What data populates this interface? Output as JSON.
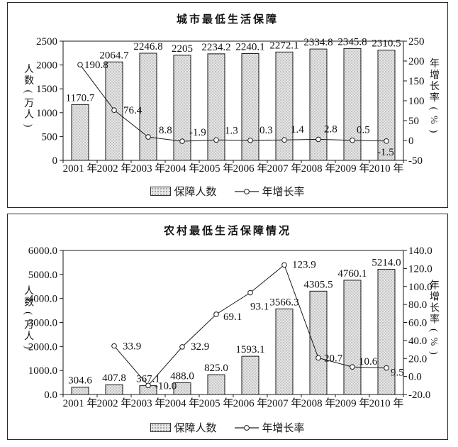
{
  "style": {
    "background": "#ffffff",
    "bar_fill": "#e6e6e6",
    "bar_dot": "#8f8f8f",
    "stroke": "#1a1a1a",
    "marker_fill": "#ffffff"
  },
  "chart_data": [
    {
      "type": "bar+line",
      "title": "城市最低生活保障",
      "categories": [
        "2001 年",
        "2002 年",
        "2003 年",
        "2004 年",
        "2005 年",
        "2006 年",
        "2007 年",
        "2008 年",
        "2009 年",
        "2010 年"
      ],
      "legend": [
        "保障人数",
        "年增长率"
      ],
      "legend_position": "bottom",
      "grid": false,
      "series": [
        {
          "name": "保障人数",
          "type": "bar",
          "axis": "left",
          "values": [
            1170.7,
            2064.7,
            2246.8,
            2205,
            2234.2,
            2240.1,
            2272.1,
            2334.8,
            2345.8,
            2310.5
          ],
          "labels": [
            "1170.7",
            "2064.7",
            "2246.8",
            "2205",
            "2234.2",
            "2240.1",
            "2272.1",
            "2334.8",
            "2345.8",
            "2310.5"
          ]
        },
        {
          "name": "年增长率",
          "type": "line",
          "axis": "right",
          "values": [
            190.8,
            76.4,
            8.8,
            -1.9,
            1.3,
            0.3,
            1.4,
            2.8,
            0.5,
            -1.5
          ],
          "labels": [
            "190.8",
            "76.4",
            "8.8",
            "-1.9",
            "1.3",
            "0.3",
            "1.4",
            "2.8",
            "0.5",
            "-1.5"
          ]
        }
      ],
      "left_axis": {
        "label": "人数(万人)",
        "min": 0,
        "max": 2500,
        "tick_labels": [
          "0",
          "500",
          "1000",
          "1500",
          "2000",
          "2500"
        ]
      },
      "right_axis": {
        "label": "年增长率(%)",
        "min": -50,
        "max": 250,
        "tick_labels": [
          "-50",
          "0",
          "50",
          "100",
          "150",
          "200",
          "250"
        ]
      }
    },
    {
      "type": "bar+line",
      "title": "农村最低生活保障情况",
      "categories": [
        "2001 年",
        "2002 年",
        "2003 年",
        "2004 年",
        "2005 年",
        "2006 年",
        "2007 年",
        "2008 年",
        "2009 年",
        "2010 年"
      ],
      "legend": [
        "保障人数",
        "年增长率"
      ],
      "legend_position": "bottom",
      "grid": false,
      "series": [
        {
          "name": "保障人数",
          "type": "bar",
          "axis": "left",
          "values": [
            304.6,
            407.8,
            367.1,
            488.0,
            825.0,
            1593.1,
            3566.3,
            4305.5,
            4760.1,
            5214.0
          ],
          "labels": [
            "304.6",
            "407.8",
            "367.1",
            "488.0",
            "825.0",
            "1593.1",
            "3566.3",
            "4305.5",
            "4760.1",
            "5214.0"
          ]
        },
        {
          "name": "年增长率",
          "type": "line",
          "axis": "right",
          "values": [
            null,
            33.9,
            -10.0,
            32.9,
            69.1,
            93.1,
            123.9,
            20.7,
            10.6,
            9.5
          ],
          "labels": [
            "",
            "33.9",
            "-10.0",
            "32.9",
            "69.1",
            "93.1",
            "123.9",
            "20.7",
            "10.6",
            "9.5"
          ]
        }
      ],
      "left_axis": {
        "label": "人数(万人)",
        "min": 0,
        "max": 6000,
        "tick_labels": [
          "0.0",
          "1000.0",
          "2000.0",
          "3000.0",
          "4000.0",
          "5000.0",
          "6000.0"
        ]
      },
      "right_axis": {
        "label": "年增长率(%)",
        "min": -20,
        "max": 140,
        "tick_labels": [
          "-20.0",
          "0.0",
          "20.0",
          "40.0",
          "60.0",
          "80.0",
          "100.0",
          "120.0",
          "140.0"
        ]
      }
    }
  ]
}
